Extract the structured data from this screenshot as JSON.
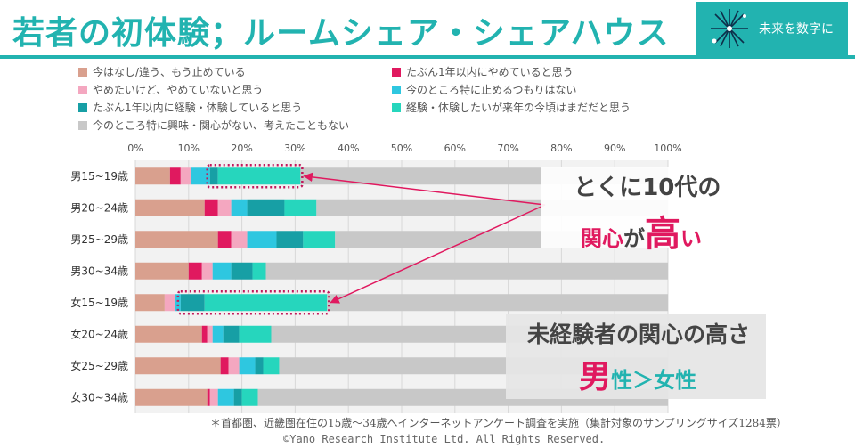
{
  "header": {
    "title": "若者の初体験；ルームシェア・シェアハウス",
    "logo_text": "未来を数字に"
  },
  "colors": {
    "accent": "#22b3b0",
    "highlight": "#e0195f"
  },
  "callouts": {
    "teen": {
      "line1": "とくに10代の",
      "part1": "関心",
      "part2": "が",
      "part3": "高",
      "part4": "い"
    },
    "gender": {
      "line1": "未経験者の関心の高さ",
      "male": "男",
      "part2": "性＞女性"
    }
  },
  "footnote": "＊首都圏、近畿圏在住の15歳～34歳へインターネットアンケート調査を実施（集計対象のサンプリングサイズ1284票）",
  "copyright": "©Yano Research Institute Ltd. All Rights Reserved.",
  "chart_data": {
    "type": "bar",
    "orientation": "horizontal",
    "stacked": true,
    "xlim": [
      0,
      100
    ],
    "x_ticks": [
      "0%",
      "10%",
      "20%",
      "30%",
      "40%",
      "50%",
      "60%",
      "70%",
      "80%",
      "90%",
      "100%"
    ],
    "categories": [
      "男15~19歳",
      "男20~24歳",
      "男25~29歳",
      "男30~34歳",
      "女15~19歳",
      "女20~24歳",
      "女25~29歳",
      "女30~34歳"
    ],
    "series": [
      {
        "name": "今はなし/違う、もう止めている",
        "color": "#d9a08e",
        "values": [
          6.5,
          13,
          15.5,
          10,
          5.5,
          12.5,
          16,
          13.5
        ]
      },
      {
        "name": "たぶん1年以内にやめていると思う",
        "color": "#e0195f",
        "values": [
          2,
          2.5,
          2.5,
          2.5,
          0,
          1,
          1.5,
          0.5
        ]
      },
      {
        "name": "やめたいけど、やめていないと思う",
        "color": "#f4a7c0",
        "values": [
          2,
          2.5,
          3,
          2,
          2,
          1,
          2,
          1.5
        ]
      },
      {
        "name": "今のところ特に止めるつもりはない",
        "color": "#2ec7e0",
        "values": [
          3.5,
          3,
          5.5,
          3.5,
          1,
          2,
          3,
          3
        ]
      },
      {
        "name": "たぶん1年以内に経験・体験していると思う",
        "color": "#179fa5",
        "values": [
          1.5,
          7,
          5,
          4,
          4.5,
          3,
          1.5,
          1.5
        ]
      },
      {
        "name": "経験・体験したいが来年の今頃はまだだと思う",
        "color": "#26d6bd",
        "values": [
          15.5,
          6,
          6,
          2.5,
          23,
          6,
          3,
          3
        ]
      },
      {
        "name": "今のところ特に興味・関心がない、考えたこともない",
        "color": "#c8c8c8",
        "values": [
          69,
          66,
          62.5,
          75.5,
          64,
          74.5,
          73,
          77
        ]
      }
    ],
    "highlighted_categories": [
      "男15~19歳",
      "女15~19歳"
    ],
    "grid": true
  }
}
